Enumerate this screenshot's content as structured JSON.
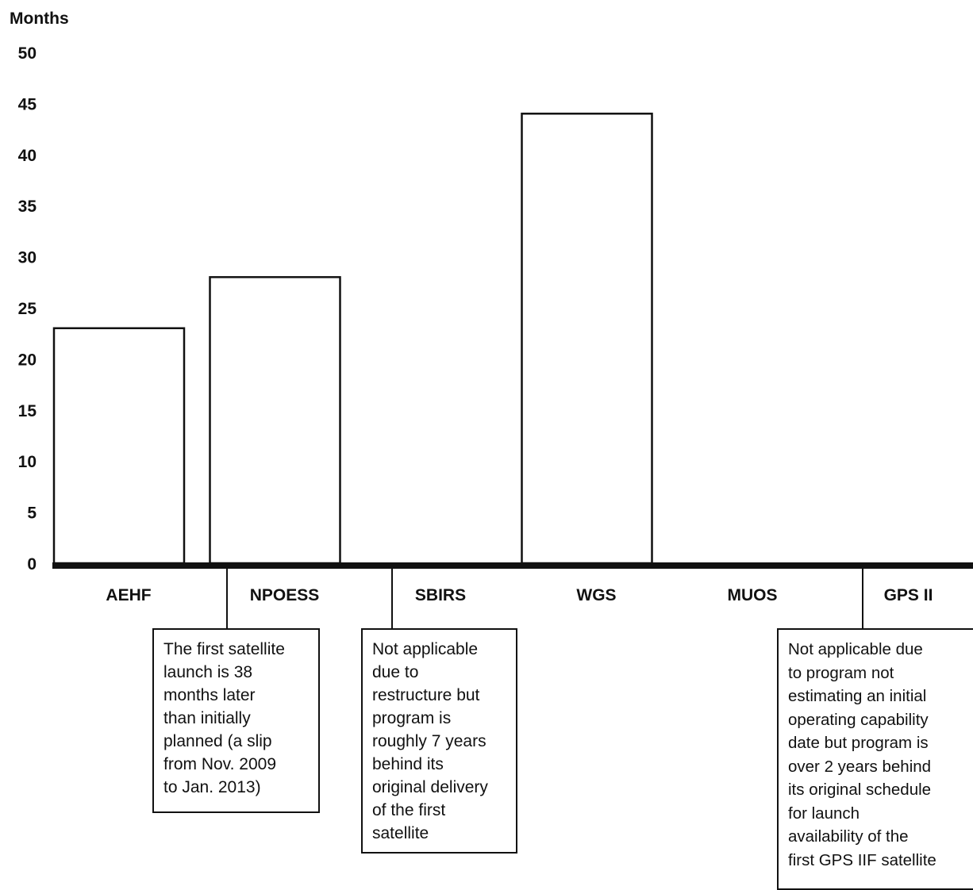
{
  "chart_data": {
    "type": "bar",
    "title": "",
    "xlabel": "",
    "ylabel": "Months",
    "ylim": [
      0,
      50
    ],
    "yticks": [
      0,
      5,
      10,
      15,
      20,
      25,
      30,
      35,
      40,
      45,
      50
    ],
    "grid": false,
    "categories": [
      "AEHF",
      "NPOESS",
      "SBIRS",
      "WGS",
      "MUOS",
      "GPS II"
    ],
    "values": [
      23,
      28,
      null,
      44,
      null,
      null
    ],
    "annotations": [
      {
        "category": "NPOESS",
        "text": "The first satellite\nlaunch is 38\nmonths later\nthan initially\nplanned (a slip\nfrom Nov. 2009\nto Jan. 2013)"
      },
      {
        "category": "SBIRS",
        "text": "Not applicable\ndue to\nrestructure but\nprogram is\nroughly 7 years\nbehind its\noriginal delivery\nof the first\nsatellite"
      },
      {
        "category": "GPS II",
        "text": "Not applicable due\nto program not\nestimating an initial\noperating capability\ndate but program is\nover 2 years behind\nits original schedule\nfor launch\navailability of the\nfirst GPS IIF satellite"
      }
    ]
  }
}
